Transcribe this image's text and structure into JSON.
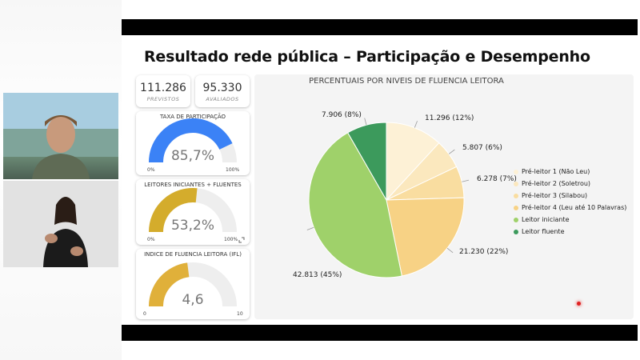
{
  "title": "Resultado rede pública – Participação e Desempenho",
  "kpis": {
    "previstos": {
      "value": "111.286",
      "label": "PREVISTOS"
    },
    "avaliados": {
      "value": "95.330",
      "label": "AVALIADOS"
    }
  },
  "gauges": [
    {
      "title": "TAXA DE PARTICIPAÇÃO",
      "value_text": "85,7%",
      "fraction": 0.857,
      "min": "0%",
      "max": "100%",
      "color": "#3b82f6"
    },
    {
      "title": "LEITORES INICIANTES + FLUENTES",
      "value_text": "53,2%",
      "fraction": 0.532,
      "min": "0%",
      "max": "100%",
      "color": "#d4ac2c"
    },
    {
      "title": "INDICE DE FLUENCIA LEITORA (IFL)",
      "value_text": "4,6",
      "fraction": 0.46,
      "min": "0",
      "max": "10",
      "color": "#e0b03a"
    }
  ],
  "chart_data": {
    "type": "pie",
    "title": "PERCENTUAIS POR NIVEIS DE FLUENCIA LEITORA",
    "legend_position": "right",
    "slices": [
      {
        "name": "Pré-leitor 1 (Não Leu)",
        "value": 11296,
        "label": "11.296 (12%)",
        "color": "#fdf1d6"
      },
      {
        "name": "Pré-leitor 2 (Soletrou)",
        "value": 5807,
        "label": "5.807 (6%)",
        "color": "#fbe8be"
      },
      {
        "name": "Pré-leitor 3 (Silabou)",
        "value": 6278,
        "label": "6.278 (7%)",
        "color": "#f9dda0"
      },
      {
        "name": "Pré-leitor 4 (Leu até 10 Palavras)",
        "value": 21230,
        "label": "21.230 (22%)",
        "color": "#f7d285"
      },
      {
        "name": "Leitor iniciante",
        "value": 42813,
        "label": "42.813 (45%)",
        "color": "#9fd16a"
      },
      {
        "name": "Leitor fluente",
        "value": 7906,
        "label": "7.906 (8%)",
        "color": "#3c9a5c"
      }
    ]
  },
  "colors": {
    "title_bar": "#000000",
    "accent_pink": "#e83e8c",
    "panel_bg": "#f4f4f4"
  },
  "icons": {
    "expand": "expand-icon",
    "recording": "recording-dot-icon"
  }
}
